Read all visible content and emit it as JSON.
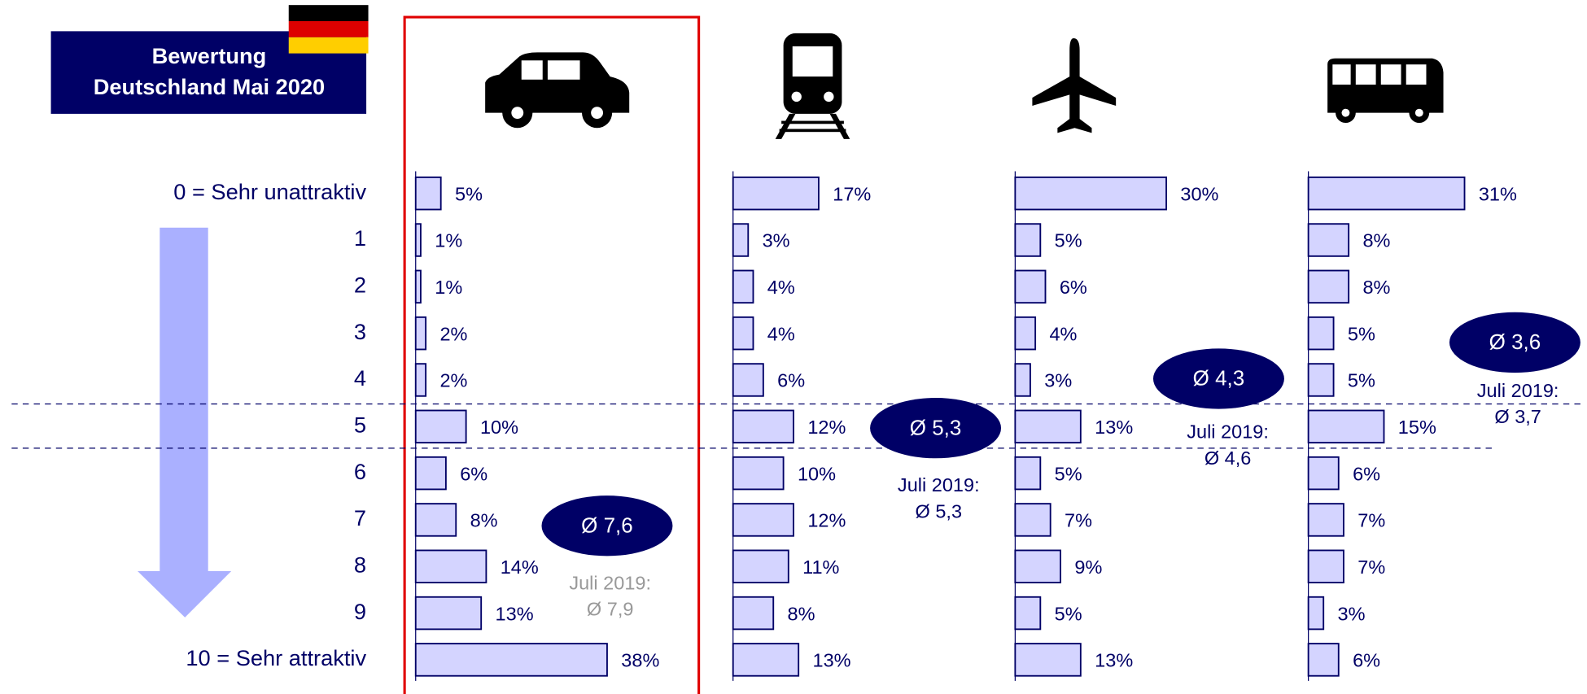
{
  "header": {
    "title": [
      "Bewertung",
      "Deutschland Mai 2020"
    ]
  },
  "categories": [
    "0 = Sehr unattraktiv",
    "1",
    "2",
    "3",
    "4",
    "5",
    "6",
    "7",
    "8",
    "9",
    "10 = Sehr attraktiv"
  ],
  "chart_data": [
    {
      "type": "bar",
      "values": [
        5,
        1,
        1,
        2,
        2,
        10,
        6,
        8,
        14,
        13,
        38
      ],
      "value_labels": [
        "5%",
        "1%",
        "1%",
        "2%",
        "2%",
        "10%",
        "6%",
        "8%",
        "14%",
        "13%",
        "38%"
      ],
      "color": "#d4d4ff",
      "xlim": [
        0,
        40
      ],
      "average": "Ø 7,6",
      "annotations": [
        "Juli 2019:",
        "Ø 7,9"
      ]
    },
    {
      "type": "bar",
      "values": [
        17,
        3,
        4,
        4,
        6,
        12,
        10,
        12,
        11,
        8,
        13
      ],
      "value_labels": [
        "17%",
        "3%",
        "4%",
        "4%",
        "6%",
        "12%",
        "10%",
        "12%",
        "11%",
        "8%",
        "13%"
      ],
      "color": "#d4d4ff",
      "xlim": [
        0,
        40
      ],
      "average": "Ø 5,3",
      "annotations": [
        "Juli 2019:",
        "Ø 5,3"
      ]
    },
    {
      "type": "bar",
      "values": [
        30,
        5,
        6,
        4,
        3,
        13,
        5,
        7,
        9,
        5,
        13
      ],
      "value_labels": [
        "30%",
        "5%",
        "6%",
        "4%",
        "3%",
        "13%",
        "5%",
        "7%",
        "9%",
        "5%",
        "13%"
      ],
      "color": "#d4d4ff",
      "xlim": [
        0,
        40
      ],
      "average": "Ø 4,3",
      "annotations": [
        "Juli 2019:",
        "Ø 4,6"
      ]
    },
    {
      "type": "bar",
      "values": [
        31,
        8,
        8,
        5,
        5,
        15,
        6,
        7,
        7,
        3,
        6
      ],
      "value_labels": [
        "31%",
        "8%",
        "8%",
        "5%",
        "5%",
        "15%",
        "6%",
        "7%",
        "7%",
        "3%",
        "6%"
      ],
      "color": "#d4d4ff",
      "xlim": [
        0,
        40
      ],
      "average": "Ø 3,6",
      "annotations": [
        "Juli 2019:",
        "Ø 3,7"
      ]
    }
  ]
}
